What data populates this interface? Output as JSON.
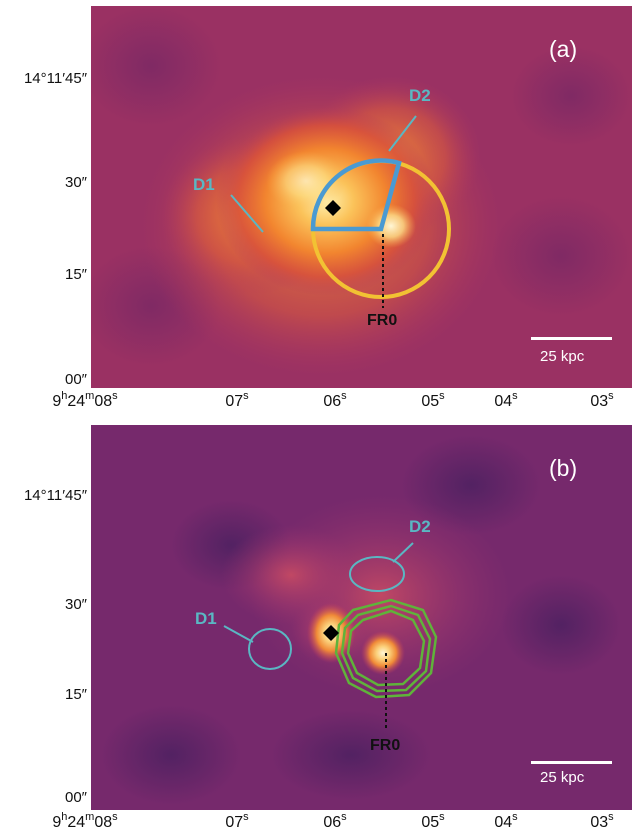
{
  "panel_a": {
    "letter": "(a)",
    "scale_label": "25 kpc",
    "d1": "D1",
    "d2": "D2",
    "fr0": "FR0",
    "colors": {
      "region": "#4a9ad2",
      "circle": "#f2c233",
      "label": "#5ab7c3"
    }
  },
  "panel_b": {
    "letter": "(b)",
    "scale_label": "25 kpc",
    "d1": "D1",
    "d2": "D2",
    "fr0": "FR0",
    "colors": {
      "ellipse": "#5ab7c3",
      "contour": "#5fb33a",
      "label": "#5ab7c3"
    }
  },
  "y_axis": {
    "t45_main": "14°11′45″",
    "t30": "30″",
    "t15": "15″",
    "t00": "00″"
  },
  "x_axis": {
    "first": {
      "h": "9",
      "m": "24",
      "s": "08"
    },
    "t07": "07",
    "t06": "06",
    "t05": "05",
    "t04": "04",
    "t03": "03",
    "s_unit": "s"
  },
  "colormap": "magma"
}
